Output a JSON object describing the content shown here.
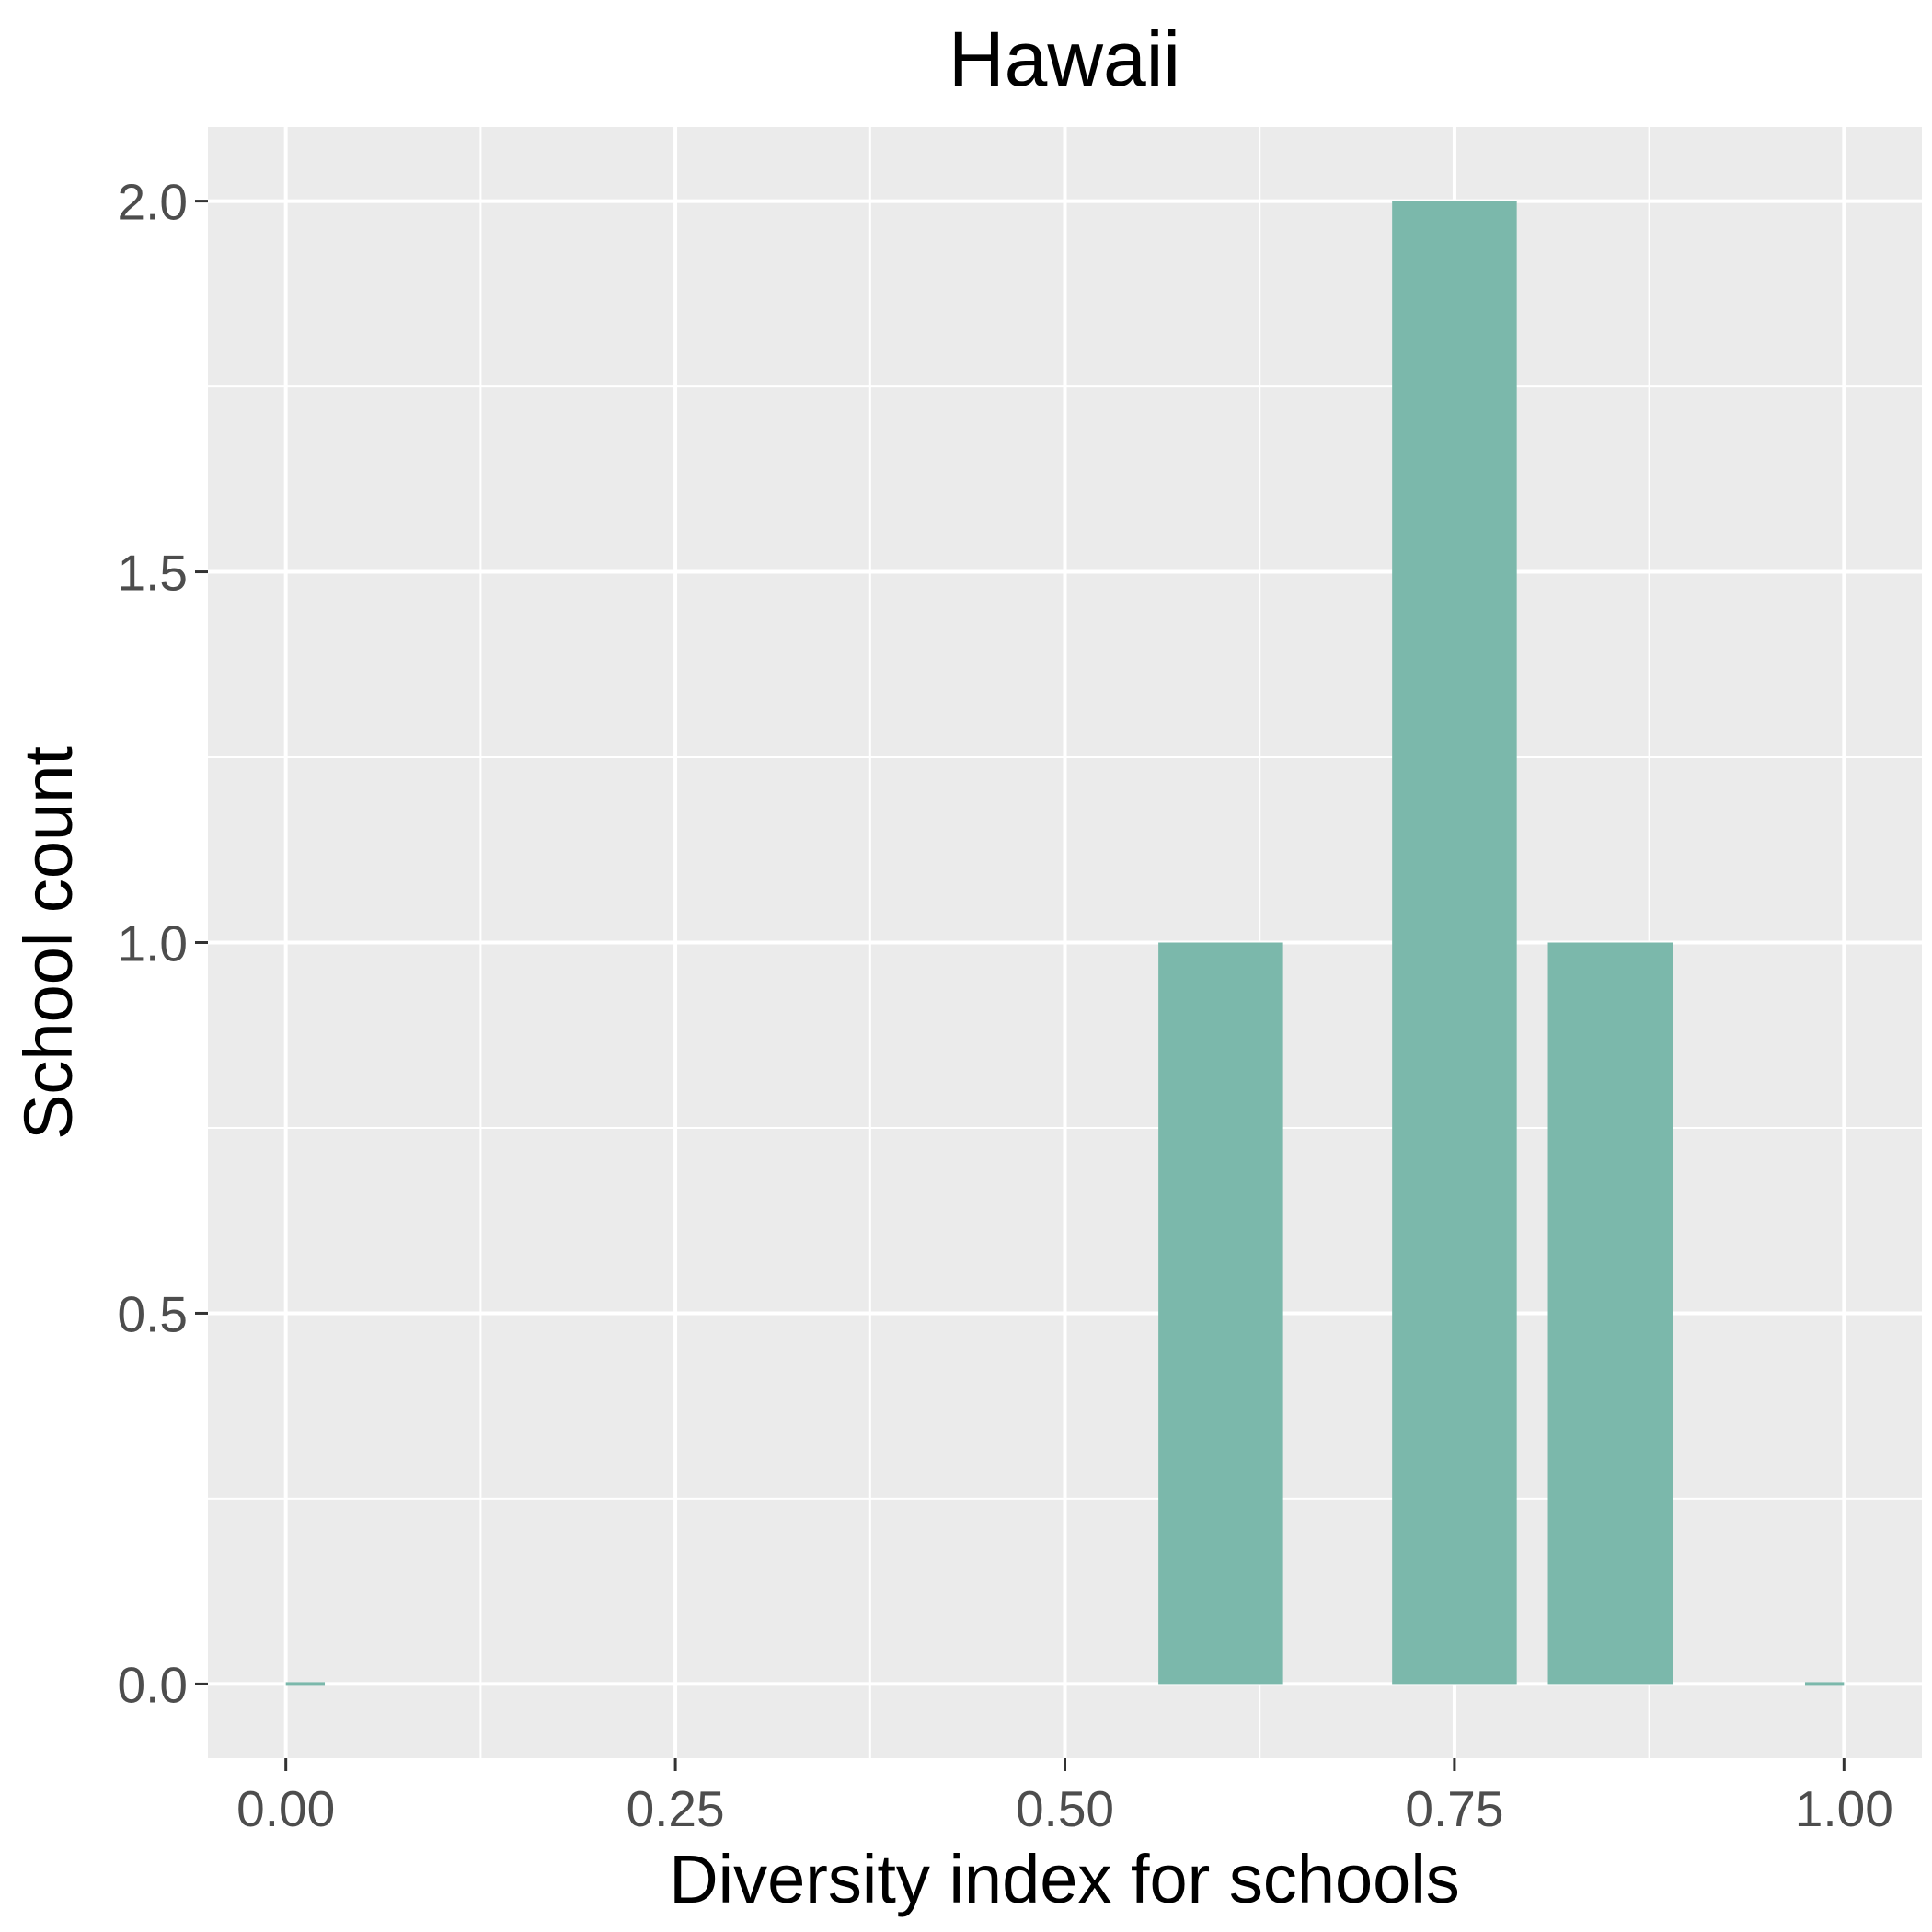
{
  "chart_data": {
    "type": "bar",
    "title": "Hawaii",
    "xlabel": "Diversity index for schools",
    "ylabel": "School count",
    "bin_width": 0.08,
    "bins": [
      {
        "x": 0.6,
        "value": 1
      },
      {
        "x": 0.75,
        "value": 2
      },
      {
        "x": 0.85,
        "value": 1
      }
    ],
    "baseline": [
      {
        "x0": 0.0,
        "x1": 0.025,
        "value": 0
      },
      {
        "x0": 0.975,
        "x1": 1.0,
        "value": 0
      }
    ],
    "xlim": [
      -0.05,
      1.05
    ],
    "ylim": [
      -0.1,
      2.1
    ],
    "x_ticks": [
      0.0,
      0.25,
      0.5,
      0.75,
      1.0
    ],
    "x_tick_labels": [
      "0.00",
      "0.25",
      "0.50",
      "0.75",
      "1.00"
    ],
    "x_minor_ticks": [
      0.125,
      0.375,
      0.625,
      0.875
    ],
    "y_ticks": [
      0.0,
      0.5,
      1.0,
      1.5,
      2.0
    ],
    "y_tick_labels": [
      "0.0",
      "0.5",
      "1.0",
      "1.5",
      "2.0"
    ],
    "y_minor_ticks": [
      0.25,
      0.75,
      1.25,
      1.75
    ],
    "grid": true,
    "legend": "none",
    "colors": {
      "bar": "#7bb8ab",
      "panel": "#ebebeb",
      "grid": "#ffffff",
      "tick": "#333333"
    }
  }
}
